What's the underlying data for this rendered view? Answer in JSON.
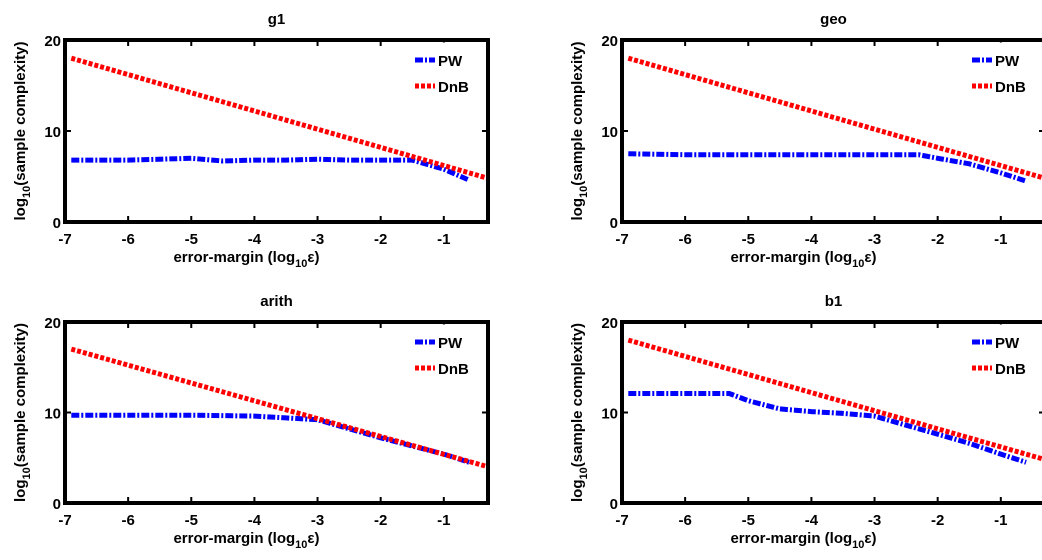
{
  "chart_data": [
    {
      "type": "line",
      "title": "g1",
      "xlabel": "error-margin (log10ε)",
      "ylabel": "log10(sample complexity)",
      "xlim": [
        -7,
        -0.3
      ],
      "ylim": [
        0,
        20
      ],
      "xticks": [
        -7,
        -6,
        -5,
        -4,
        -3,
        -2,
        -1
      ],
      "yticks": [
        0,
        10,
        20
      ],
      "legend": "top-right",
      "series": [
        {
          "name": "PW",
          "color": "#0000ff",
          "dash": "dash-dot",
          "x": [
            -6.9,
            -6.0,
            -5.0,
            -4.5,
            -4.0,
            -3.5,
            -3.0,
            -2.5,
            -2.0,
            -1.5,
            -1.0,
            -0.6
          ],
          "y": [
            6.8,
            6.8,
            7.0,
            6.7,
            6.8,
            6.8,
            6.9,
            6.8,
            6.8,
            6.8,
            5.8,
            4.6
          ]
        },
        {
          "name": "DnB",
          "color": "#ff0000",
          "dash": "dotted",
          "x": [
            -6.9,
            -0.3
          ],
          "y": [
            18.0,
            4.8
          ]
        }
      ]
    },
    {
      "type": "line",
      "title": "geo",
      "xlabel": "error-margin (log10ε)",
      "ylabel": "log10(sample complexity)",
      "xlim": [
        -7,
        -0.3
      ],
      "ylim": [
        0,
        20
      ],
      "xticks": [
        -7,
        -6,
        -5,
        -4,
        -3,
        -2,
        -1
      ],
      "yticks": [
        0,
        10,
        20
      ],
      "legend": "top-right",
      "series": [
        {
          "name": "PW",
          "color": "#0000ff",
          "dash": "dash-dot",
          "x": [
            -6.9,
            -6.0,
            -5.0,
            -4.0,
            -3.0,
            -2.3,
            -2.0,
            -1.5,
            -1.0,
            -0.6
          ],
          "y": [
            7.5,
            7.4,
            7.4,
            7.4,
            7.4,
            7.4,
            7.0,
            6.4,
            5.4,
            4.5
          ]
        },
        {
          "name": "DnB",
          "color": "#ff0000",
          "dash": "dotted",
          "x": [
            -6.9,
            -0.3
          ],
          "y": [
            18.0,
            4.8
          ]
        }
      ]
    },
    {
      "type": "line",
      "title": "arith",
      "xlabel": "error-margin (log10ε)",
      "ylabel": "log10(sample complexity)",
      "xlim": [
        -7,
        -0.3
      ],
      "ylim": [
        0,
        20
      ],
      "xticks": [
        -7,
        -6,
        -5,
        -4,
        -3,
        -2,
        -1
      ],
      "yticks": [
        0,
        10,
        20
      ],
      "legend": "top-right",
      "series": [
        {
          "name": "PW",
          "color": "#0000ff",
          "dash": "dash-dot",
          "x": [
            -6.9,
            -6.0,
            -5.0,
            -4.0,
            -3.5,
            -3.0,
            -2.5,
            -2.0,
            -1.5,
            -1.0,
            -0.6
          ],
          "y": [
            9.7,
            9.7,
            9.7,
            9.6,
            9.4,
            9.2,
            8.2,
            7.2,
            6.3,
            5.4,
            4.5
          ]
        },
        {
          "name": "DnB",
          "color": "#ff0000",
          "dash": "dotted",
          "x": [
            -6.9,
            -0.3
          ],
          "y": [
            17.0,
            4.0
          ]
        }
      ]
    },
    {
      "type": "line",
      "title": "b1",
      "xlabel": "error-margin (log10ε)",
      "ylabel": "log10(sample complexity)",
      "xlim": [
        -7,
        -0.3
      ],
      "ylim": [
        0,
        20
      ],
      "xticks": [
        -7,
        -6,
        -5,
        -4,
        -3,
        -2,
        -1
      ],
      "yticks": [
        0,
        10,
        20
      ],
      "legend": "top-right",
      "series": [
        {
          "name": "PW",
          "color": "#0000ff",
          "dash": "dash-dot",
          "x": [
            -6.9,
            -6.0,
            -5.3,
            -5.0,
            -4.5,
            -4.0,
            -3.5,
            -3.0,
            -2.5,
            -2.0,
            -1.5,
            -1.0,
            -0.6
          ],
          "y": [
            12.1,
            12.1,
            12.1,
            11.3,
            10.4,
            10.1,
            9.9,
            9.6,
            8.6,
            7.6,
            6.6,
            5.4,
            4.5
          ]
        },
        {
          "name": "DnB",
          "color": "#ff0000",
          "dash": "dotted",
          "x": [
            -6.9,
            -0.3
          ],
          "y": [
            18.0,
            4.8
          ]
        }
      ]
    }
  ]
}
